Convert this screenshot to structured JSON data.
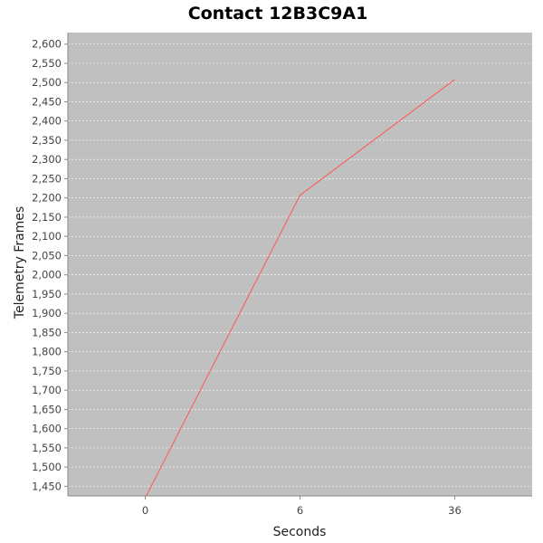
{
  "chart_data": {
    "type": "line",
    "title": "Contact 12B3C9A1",
    "xlabel": "Seconds",
    "ylabel": "Telemetry Frames",
    "categories": [
      "0",
      "6",
      "36"
    ],
    "series": [
      {
        "values": [
          1420,
          2207,
          2508
        ]
      }
    ],
    "ylim": [
      1425,
      2630
    ],
    "yticks": [
      1450,
      1500,
      1550,
      1600,
      1650,
      1700,
      1750,
      1800,
      1850,
      1900,
      1950,
      2000,
      2050,
      2100,
      2150,
      2200,
      2250,
      2300,
      2350,
      2400,
      2450,
      2500,
      2550,
      2600
    ],
    "ytick_labels": [
      "1,450",
      "1,500",
      "1,550",
      "1,600",
      "1,650",
      "1,700",
      "1,750",
      "1,800",
      "1,850",
      "1,900",
      "1,950",
      "2,000",
      "2,050",
      "2,100",
      "2,150",
      "2,200",
      "2,250",
      "2,300",
      "2,350",
      "2,400",
      "2,450",
      "2,500",
      "2,550",
      "2,600"
    ],
    "grid": true,
    "colors": {
      "plot_background": "#c0c0c0",
      "grid": "#ffffff",
      "line": "#ff5555"
    }
  }
}
